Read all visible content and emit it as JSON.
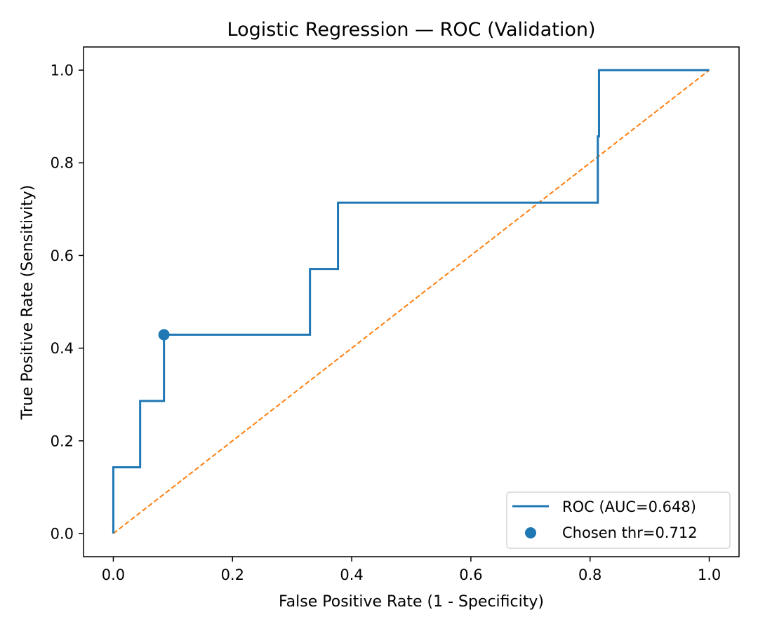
{
  "chart_data": {
    "type": "line",
    "title": "Logistic Regression — ROC (Validation)",
    "xlabel": "False Positive Rate (1 - Specificity)",
    "ylabel": "True Positive Rate (Sensitivity)",
    "xlim": [
      -0.05,
      1.05
    ],
    "ylim": [
      -0.05,
      1.05
    ],
    "x_ticks": [
      "0.0",
      "0.2",
      "0.4",
      "0.6",
      "0.8",
      "1.0"
    ],
    "y_ticks": [
      "0.0",
      "0.2",
      "0.4",
      "0.6",
      "0.8",
      "1.0"
    ],
    "grid": false,
    "legend_position": "lower-right",
    "series": [
      {
        "name": "ROC (AUC=0.648)",
        "style": "solid",
        "color": "#1f77b4",
        "x": [
          0.0,
          0.0,
          0.045,
          0.045,
          0.085,
          0.085,
          0.33,
          0.33,
          0.377,
          0.377,
          0.813,
          0.813,
          0.815,
          0.815,
          1.0
        ],
        "y": [
          0.0,
          0.143,
          0.143,
          0.286,
          0.286,
          0.429,
          0.429,
          0.571,
          0.571,
          0.714,
          0.714,
          0.857,
          0.857,
          1.0,
          1.0
        ]
      },
      {
        "name": "",
        "style": "dashed",
        "color": "#ff7f0e",
        "x": [
          0.0,
          1.0
        ],
        "y": [
          0.0,
          1.0
        ]
      }
    ],
    "points": [
      {
        "name": "Chosen thr=0.712",
        "color": "#1f77b4",
        "x": 0.085,
        "y": 0.429
      }
    ]
  }
}
